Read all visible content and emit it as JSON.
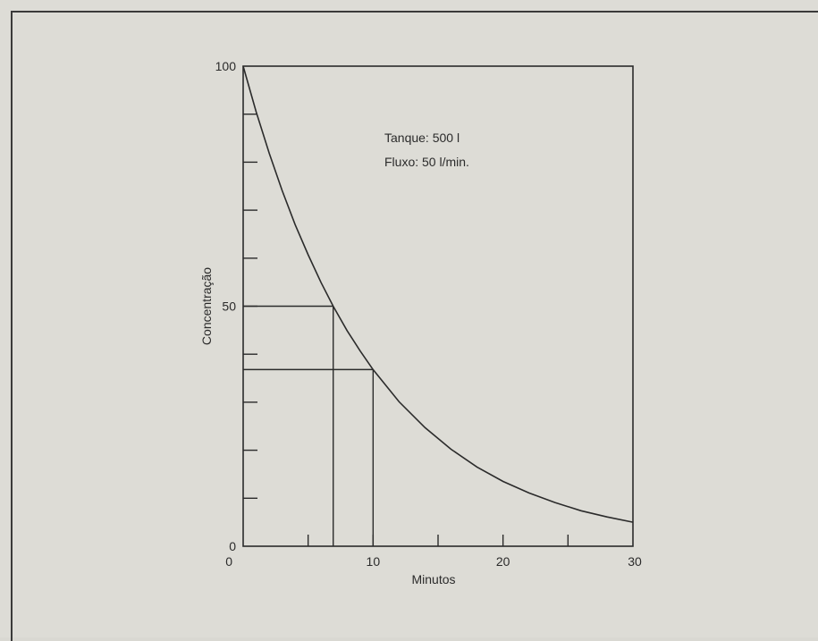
{
  "chart_data": {
    "type": "line",
    "title": "",
    "xlabel": "Minutos",
    "ylabel": "Concentração",
    "xlim": [
      0,
      30
    ],
    "ylim": [
      0,
      100
    ],
    "x_tick_labels": [
      "0",
      "10",
      "20",
      "30"
    ],
    "y_tick_labels": [
      "0",
      "50",
      "100"
    ],
    "annotations": [
      "Tanque: 500 l",
      "Fluxo: 50 l/min."
    ],
    "series": [
      {
        "x": [
          0,
          1,
          2,
          3,
          4,
          5,
          6,
          6.93,
          8,
          9,
          10,
          12,
          14,
          16,
          18,
          20,
          22,
          24,
          26,
          28,
          30
        ],
        "values": [
          100,
          90.5,
          81.9,
          74.1,
          67.0,
          60.7,
          54.9,
          50.0,
          44.9,
          40.7,
          36.8,
          30.1,
          24.7,
          20.2,
          16.5,
          13.5,
          11.1,
          9.1,
          7.4,
          6.1,
          5.0
        ]
      }
    ],
    "reference_points": [
      {
        "x": 6.93,
        "y": 50
      },
      {
        "x": 10,
        "y": 36.8
      }
    ],
    "line_color": "#2b2b2b",
    "grid": false
  }
}
